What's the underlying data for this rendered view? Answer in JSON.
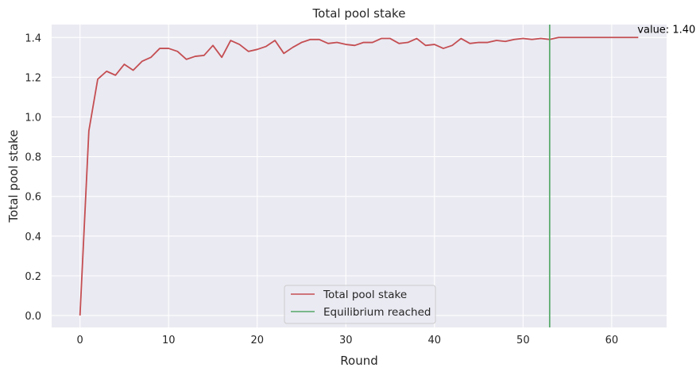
{
  "chart_data": {
    "type": "line",
    "title": "Total pool stake",
    "xlabel": "Round",
    "ylabel": "Total pool stake",
    "xlim": [
      -3.2,
      66.2
    ],
    "ylim": [
      -0.06,
      1.465
    ],
    "xticks": [
      0,
      10,
      20,
      30,
      40,
      50,
      60
    ],
    "yticks": [
      0.0,
      0.2,
      0.4,
      0.6,
      0.8,
      1.0,
      1.2,
      1.4
    ],
    "grid": true,
    "legend_position": "lower-center",
    "series": [
      {
        "name": "Total pool stake",
        "color": "#c44e52",
        "x": [
          0,
          1,
          2,
          3,
          4,
          5,
          6,
          7,
          8,
          9,
          10,
          11,
          12,
          13,
          14,
          15,
          16,
          17,
          18,
          19,
          20,
          21,
          22,
          23,
          24,
          25,
          26,
          27,
          28,
          29,
          30,
          31,
          32,
          33,
          34,
          35,
          36,
          37,
          38,
          39,
          40,
          41,
          42,
          43,
          44,
          45,
          46,
          47,
          48,
          49,
          50,
          51,
          52,
          53,
          54,
          55,
          56,
          57,
          58,
          59,
          60,
          61,
          62,
          63
        ],
        "values": [
          0.0,
          0.93,
          1.19,
          1.23,
          1.21,
          1.265,
          1.235,
          1.28,
          1.3,
          1.345,
          1.345,
          1.33,
          1.29,
          1.305,
          1.31,
          1.36,
          1.3,
          1.385,
          1.365,
          1.33,
          1.34,
          1.355,
          1.385,
          1.32,
          1.35,
          1.375,
          1.39,
          1.39,
          1.37,
          1.375,
          1.365,
          1.36,
          1.375,
          1.375,
          1.395,
          1.395,
          1.37,
          1.375,
          1.395,
          1.36,
          1.365,
          1.345,
          1.36,
          1.395,
          1.37,
          1.375,
          1.375,
          1.385,
          1.38,
          1.39,
          1.395,
          1.39,
          1.395,
          1.39,
          1.4,
          1.4,
          1.4,
          1.4,
          1.4,
          1.4,
          1.4,
          1.4,
          1.4,
          1.4
        ]
      },
      {
        "name": "Equilibrium reached",
        "color": "#55a868",
        "type": "vline",
        "x": 53
      }
    ],
    "annotations": [
      {
        "text": "value: 1.40",
        "x": 63,
        "y": 1.4
      }
    ]
  }
}
